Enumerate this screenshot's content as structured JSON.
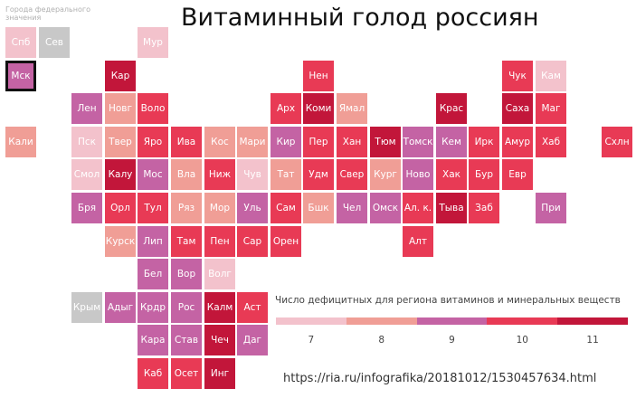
{
  "title": "Витаминный голод россиян",
  "federal_note": "Города федерального значения",
  "source": "https://ria.ru/infografika/20181012/1530457634.html",
  "legend": {
    "title": "Число дефицитных для региона витаминов и минеральных веществ",
    "values": [
      "7",
      "8",
      "9",
      "10",
      "11"
    ]
  },
  "colors": {
    "7": "#f3c2cc",
    "8": "#f09e96",
    "9": "#c463a4",
    "10": "#e83a55",
    "11": "#c2163a",
    "none": "#c8c8c8"
  },
  "chart_data": {
    "type": "heatmap",
    "title": "Витаминный голод россиян",
    "legend_title": "Число дефицитных для региона витаминов и минеральных веществ",
    "scale": [
      7,
      8,
      9,
      10,
      11
    ],
    "regions": [
      {
        "label": "Спб",
        "row": 0,
        "col": 0,
        "value": 7
      },
      {
        "label": "Сев",
        "row": 0,
        "col": 1,
        "value": null
      },
      {
        "label": "Мур",
        "row": 0,
        "col": 4,
        "value": 7
      },
      {
        "label": "Мск",
        "row": 1,
        "col": 0,
        "value": 9,
        "highlight": true
      },
      {
        "label": "Кар",
        "row": 1,
        "col": 3,
        "value": 11
      },
      {
        "label": "Нен",
        "row": 1,
        "col": 9,
        "value": 10
      },
      {
        "label": "Чук",
        "row": 1,
        "col": 15,
        "value": 10
      },
      {
        "label": "Кам",
        "row": 1,
        "col": 16,
        "value": 7
      },
      {
        "label": "Лен",
        "row": 2,
        "col": 2,
        "value": 9
      },
      {
        "label": "Новг",
        "row": 2,
        "col": 3,
        "value": 8
      },
      {
        "label": "Воло",
        "row": 2,
        "col": 4,
        "value": 10
      },
      {
        "label": "Арх",
        "row": 2,
        "col": 8,
        "value": 10
      },
      {
        "label": "Коми",
        "row": 2,
        "col": 9,
        "value": 11
      },
      {
        "label": "Ямал",
        "row": 2,
        "col": 10,
        "value": 8
      },
      {
        "label": "Крас",
        "row": 2,
        "col": 13,
        "value": 11
      },
      {
        "label": "Саха",
        "row": 2,
        "col": 15,
        "value": 11
      },
      {
        "label": "Маг",
        "row": 2,
        "col": 16,
        "value": 10
      },
      {
        "label": "Кали",
        "row": 3,
        "col": 0,
        "value": 8
      },
      {
        "label": "Пск",
        "row": 3,
        "col": 2,
        "value": 7
      },
      {
        "label": "Твер",
        "row": 3,
        "col": 3,
        "value": 8
      },
      {
        "label": "Яро",
        "row": 3,
        "col": 4,
        "value": 10
      },
      {
        "label": "Ива",
        "row": 3,
        "col": 5,
        "value": 10
      },
      {
        "label": "Кос",
        "row": 3,
        "col": 6,
        "value": 8
      },
      {
        "label": "Мари",
        "row": 3,
        "col": 7,
        "value": 8
      },
      {
        "label": "Кир",
        "row": 3,
        "col": 8,
        "value": 9
      },
      {
        "label": "Пер",
        "row": 3,
        "col": 9,
        "value": 10
      },
      {
        "label": "Хан",
        "row": 3,
        "col": 10,
        "value": 10
      },
      {
        "label": "Тюм",
        "row": 3,
        "col": 11,
        "value": 11
      },
      {
        "label": "Томск",
        "row": 3,
        "col": 12,
        "value": 9
      },
      {
        "label": "Кем",
        "row": 3,
        "col": 13,
        "value": 9
      },
      {
        "label": "Ирк",
        "row": 3,
        "col": 14,
        "value": 10
      },
      {
        "label": "Амур",
        "row": 3,
        "col": 15,
        "value": 10
      },
      {
        "label": "Хаб",
        "row": 3,
        "col": 16,
        "value": 10
      },
      {
        "label": "Схлн",
        "row": 3,
        "col": 18,
        "value": 10
      },
      {
        "label": "Смол",
        "row": 4,
        "col": 2,
        "value": 7
      },
      {
        "label": "Калу",
        "row": 4,
        "col": 3,
        "value": 11
      },
      {
        "label": "Мос",
        "row": 4,
        "col": 4,
        "value": 9
      },
      {
        "label": "Вла",
        "row": 4,
        "col": 5,
        "value": 8
      },
      {
        "label": "Ниж",
        "row": 4,
        "col": 6,
        "value": 10
      },
      {
        "label": "Чув",
        "row": 4,
        "col": 7,
        "value": 7
      },
      {
        "label": "Тат",
        "row": 4,
        "col": 8,
        "value": 8
      },
      {
        "label": "Удм",
        "row": 4,
        "col": 9,
        "value": 10
      },
      {
        "label": "Свер",
        "row": 4,
        "col": 10,
        "value": 10
      },
      {
        "label": "Кург",
        "row": 4,
        "col": 11,
        "value": 8
      },
      {
        "label": "Ново",
        "row": 4,
        "col": 12,
        "value": 9
      },
      {
        "label": "Хак",
        "row": 4,
        "col": 13,
        "value": 10
      },
      {
        "label": "Бур",
        "row": 4,
        "col": 14,
        "value": 10
      },
      {
        "label": "Евр",
        "row": 4,
        "col": 15,
        "value": 10
      },
      {
        "label": "Бря",
        "row": 5,
        "col": 2,
        "value": 9
      },
      {
        "label": "Орл",
        "row": 5,
        "col": 3,
        "value": 10
      },
      {
        "label": "Тул",
        "row": 5,
        "col": 4,
        "value": 10
      },
      {
        "label": "Ряз",
        "row": 5,
        "col": 5,
        "value": 8
      },
      {
        "label": "Мор",
        "row": 5,
        "col": 6,
        "value": 8
      },
      {
        "label": "Уль",
        "row": 5,
        "col": 7,
        "value": 9
      },
      {
        "label": "Сам",
        "row": 5,
        "col": 8,
        "value": 10
      },
      {
        "label": "Бшк",
        "row": 5,
        "col": 9,
        "value": 8
      },
      {
        "label": "Чел",
        "row": 5,
        "col": 10,
        "value": 9
      },
      {
        "label": "Омск",
        "row": 5,
        "col": 11,
        "value": 9
      },
      {
        "label": "Ал. к.",
        "row": 5,
        "col": 12,
        "value": 10
      },
      {
        "label": "Тыва",
        "row": 5,
        "col": 13,
        "value": 11
      },
      {
        "label": "Заб",
        "row": 5,
        "col": 14,
        "value": 10
      },
      {
        "label": "При",
        "row": 5,
        "col": 16,
        "value": 9
      },
      {
        "label": "Курск",
        "row": 6,
        "col": 3,
        "value": 8
      },
      {
        "label": "Лип",
        "row": 6,
        "col": 4,
        "value": 9
      },
      {
        "label": "Там",
        "row": 6,
        "col": 5,
        "value": 10
      },
      {
        "label": "Пен",
        "row": 6,
        "col": 6,
        "value": 10
      },
      {
        "label": "Сар",
        "row": 6,
        "col": 7,
        "value": 10
      },
      {
        "label": "Орен",
        "row": 6,
        "col": 8,
        "value": 10
      },
      {
        "label": "Алт",
        "row": 6,
        "col": 12,
        "value": 10
      },
      {
        "label": "Бел",
        "row": 7,
        "col": 4,
        "value": 9
      },
      {
        "label": "Вор",
        "row": 7,
        "col": 5,
        "value": 9
      },
      {
        "label": "Волг",
        "row": 7,
        "col": 6,
        "value": 7
      },
      {
        "label": "Крым",
        "row": 8,
        "col": 2,
        "value": null
      },
      {
        "label": "Адыг",
        "row": 8,
        "col": 3,
        "value": 9
      },
      {
        "label": "Крдр",
        "row": 8,
        "col": 4,
        "value": 9
      },
      {
        "label": "Рос",
        "row": 8,
        "col": 5,
        "value": 9
      },
      {
        "label": "Калм",
        "row": 8,
        "col": 6,
        "value": 11
      },
      {
        "label": "Аст",
        "row": 8,
        "col": 7,
        "value": 10
      },
      {
        "label": "Кара",
        "row": 9,
        "col": 4,
        "value": 9
      },
      {
        "label": "Став",
        "row": 9,
        "col": 5,
        "value": 9
      },
      {
        "label": "Чеч",
        "row": 9,
        "col": 6,
        "value": 11
      },
      {
        "label": "Даг",
        "row": 9,
        "col": 7,
        "value": 9
      },
      {
        "label": "Каб",
        "row": 10,
        "col": 4,
        "value": 10
      },
      {
        "label": "Осет",
        "row": 10,
        "col": 5,
        "value": 10
      },
      {
        "label": "Инг",
        "row": 10,
        "col": 6,
        "value": 11
      }
    ]
  }
}
